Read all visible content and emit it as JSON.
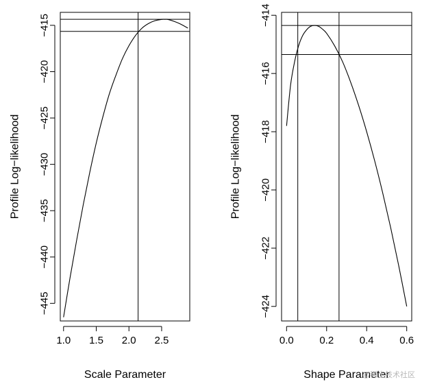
{
  "chart_data": [
    {
      "type": "line",
      "xlabel": "Scale Parameter",
      "ylabel": "Profile Log−likelihood",
      "xlim": [
        0.95,
        2.93
      ],
      "ylim": [
        -446.9,
        -413.6
      ],
      "xticks": [
        1.0,
        1.5,
        2.0,
        2.5
      ],
      "xtick_labels": [
        "1.0",
        "1.5",
        "2.0",
        "2.5"
      ],
      "yticks": [
        -445,
        -440,
        -435,
        -430,
        -425,
        -420,
        -415
      ],
      "ytick_labels": [
        "−445",
        "−440",
        "−435",
        "−430",
        "−425",
        "−420",
        "−415"
      ],
      "series": [
        {
          "x": [
            1.0,
            1.1,
            1.2,
            1.3,
            1.4,
            1.5,
            1.6,
            1.7,
            1.8,
            1.9,
            2.0,
            2.1,
            2.2,
            2.3,
            2.4,
            2.5,
            2.55,
            2.6,
            2.7,
            2.8,
            2.9
          ],
          "y": [
            -446.5,
            -442.2,
            -438.2,
            -434.4,
            -430.9,
            -427.7,
            -424.9,
            -422.4,
            -420.4,
            -418.6,
            -417.2,
            -416.1,
            -415.3,
            -414.8,
            -414.5,
            -414.36,
            -414.35,
            -414.37,
            -414.6,
            -414.9,
            -415.3
          ]
        }
      ],
      "hlines": [
        -414.35,
        -415.65
      ],
      "vlines": [
        2.14
      ]
    },
    {
      "type": "line",
      "xlabel": "Shape Parameter",
      "ylabel": "Profile Log−likelihood",
      "xlim": [
        -0.025,
        0.625
      ],
      "ylim": [
        -424.5,
        -413.9
      ],
      "xticks": [
        0.0,
        0.2,
        0.4,
        0.6
      ],
      "xtick_labels": [
        "0.0",
        "0.2",
        "0.4",
        "0.6"
      ],
      "yticks": [
        -424,
        -422,
        -420,
        -418,
        -416,
        -414
      ],
      "ytick_labels": [
        "−424",
        "−422",
        "−420",
        "−418",
        "−416",
        "−414"
      ],
      "series": [
        {
          "x": [
            0.0,
            0.02,
            0.04,
            0.06,
            0.08,
            0.1,
            0.12,
            0.14,
            0.16,
            0.18,
            0.2,
            0.24,
            0.28,
            0.32,
            0.36,
            0.4,
            0.44,
            0.48,
            0.52,
            0.56,
            0.6
          ],
          "y": [
            -417.8,
            -416.4,
            -415.6,
            -415.05,
            -414.7,
            -414.5,
            -414.38,
            -414.35,
            -414.38,
            -414.48,
            -414.62,
            -415.05,
            -415.6,
            -416.3,
            -417.1,
            -418.0,
            -419.0,
            -420.1,
            -421.3,
            -422.6,
            -424.0
          ]
        }
      ],
      "hlines": [
        -414.35,
        -415.35
      ],
      "vlines": [
        0.056,
        0.262
      ]
    }
  ],
  "watermark": "@稀土技术社区"
}
